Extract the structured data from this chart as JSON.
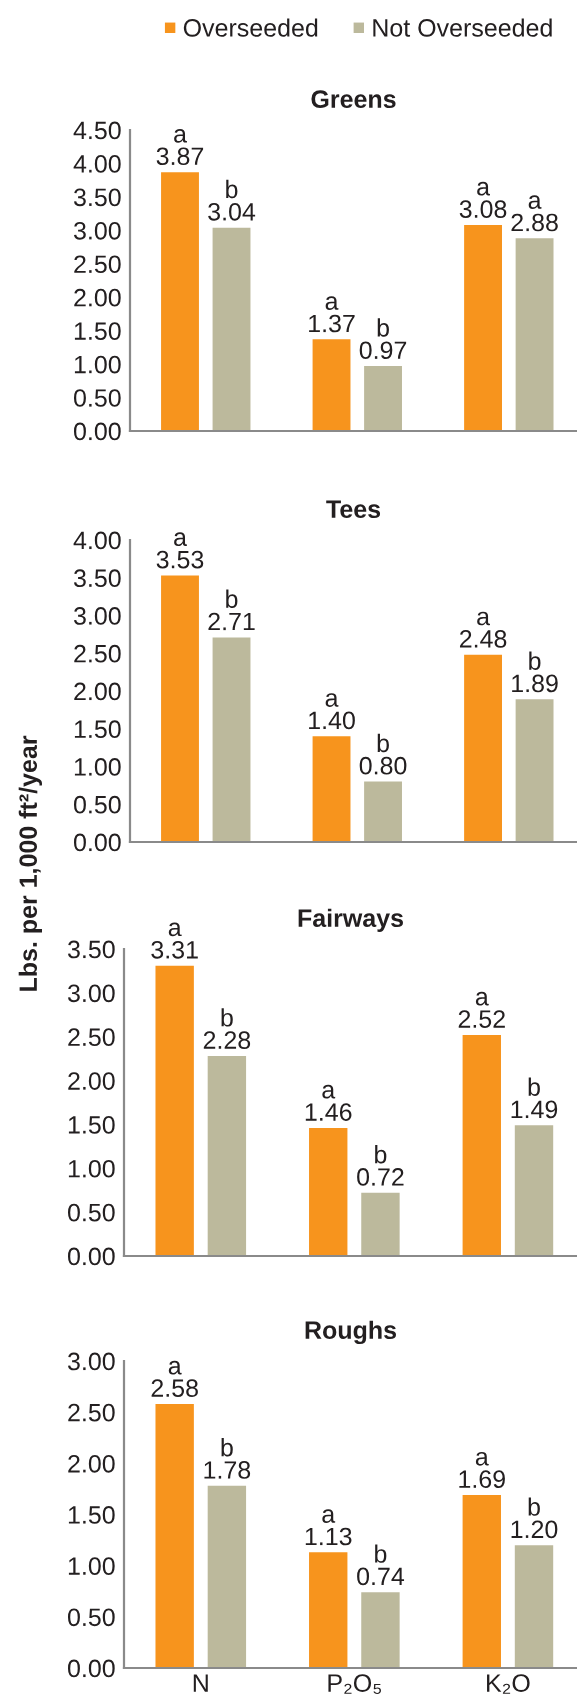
{
  "chart_data": [
    {
      "type": "bar",
      "title": "Greens",
      "categories": [
        null,
        null,
        null
      ],
      "series": [
        {
          "name": "Overseeded",
          "color": "#f7941d",
          "values": [
            3.87,
            1.37,
            3.08
          ],
          "value_labels": [
            "a\n3.87",
            "a\n1.37",
            "a\n3.08"
          ]
        },
        {
          "name": "Not Overseeded",
          "color": "#bcb99c",
          "values": [
            3.04,
            0.97,
            2.88
          ],
          "value_labels": [
            "b\n3.04",
            "b\n0.97",
            "a\n2.88"
          ]
        }
      ],
      "ylim": [
        0,
        4.5
      ],
      "yticks": [
        {
          "value": 0,
          "label": "0.00"
        },
        {
          "value": 0.5,
          "label": "0.50"
        },
        {
          "value": 1,
          "label": "1.00"
        },
        {
          "value": 1.5,
          "label": "1.50"
        },
        {
          "value": 2,
          "label": "2.00"
        },
        {
          "value": 2.5,
          "label": "2.50"
        },
        {
          "value": 3,
          "label": "3.00"
        },
        {
          "value": 3.5,
          "label": "3.50"
        },
        {
          "value": 4,
          "label": "4.00"
        },
        {
          "value": 4.5,
          "label": "4.50"
        }
      ],
      "legend": "top right"
    },
    {
      "type": "bar",
      "title": "Tees",
      "categories": [
        null,
        null,
        null
      ],
      "series": [
        {
          "color": "#f7941d",
          "values": [
            3.53,
            1.4,
            2.48
          ],
          "value_labels": [
            "a\n3.53",
            "a\n1.40",
            "a\n2.48"
          ]
        },
        {
          "color": "#bcb99c",
          "values": [
            2.71,
            0.8,
            1.89
          ],
          "value_labels": [
            "b\n2.71",
            "b\n0.80",
            "b\n1.89"
          ]
        }
      ],
      "ylim": [
        0,
        4.0
      ],
      "yticks": [
        {
          "value": 0,
          "label": "0.00"
        },
        {
          "value": 0.5,
          "label": "0.50"
        },
        {
          "value": 1,
          "label": "1.00"
        },
        {
          "value": 1.5,
          "label": "1.50"
        },
        {
          "value": 2,
          "label": "2.00"
        },
        {
          "value": 2.5,
          "label": "2.50"
        },
        {
          "value": 3,
          "label": "3.00"
        },
        {
          "value": 3.5,
          "label": "3.50"
        },
        {
          "value": 4,
          "label": "4.00"
        }
      ]
    },
    {
      "type": "bar",
      "title": "Fairways",
      "ylabel": "Lbs. per 1,000 ft²/year",
      "categories": [
        null,
        null,
        null
      ],
      "series": [
        {
          "color": "#f7941d",
          "values": [
            3.31,
            1.46,
            2.52
          ],
          "value_labels": [
            "a\n3.31",
            "a\n1.46",
            "a\n2.52"
          ]
        },
        {
          "color": "#bcb99c",
          "values": [
            2.28,
            0.72,
            1.49
          ],
          "value_labels": [
            "b\n2.28",
            "b\n0.72",
            "b\n1.49"
          ]
        }
      ],
      "ylim": [
        0,
        3.5
      ],
      "yticks": [
        {
          "value": 0,
          "label": "0.00"
        },
        {
          "value": 0.5,
          "label": "0.50"
        },
        {
          "value": 1,
          "label": "1.00"
        },
        {
          "value": 1.5,
          "label": "1.50"
        },
        {
          "value": 2,
          "label": "2.00"
        },
        {
          "value": 2.5,
          "label": "2.50"
        },
        {
          "value": 3,
          "label": "3.00"
        },
        {
          "value": 3.5,
          "label": "3.50"
        }
      ]
    },
    {
      "type": "bar",
      "title": "Roughs",
      "categories": [
        "N",
        "P₂O₅",
        "K₂O"
      ],
      "series": [
        {
          "color": "#f7941d",
          "values": [
            2.58,
            1.13,
            1.69
          ],
          "value_labels": [
            "a\n2.58",
            "a\n1.13",
            "a\n1.69"
          ]
        },
        {
          "color": "#bcb99c",
          "values": [
            1.78,
            0.74,
            1.2
          ],
          "value_labels": [
            "b\n1.78",
            "b\n0.74",
            "b\n1.20"
          ]
        }
      ],
      "ylim": [
        0,
        3.0
      ],
      "yticks": [
        {
          "value": 0,
          "label": "0.00"
        },
        {
          "value": 0.5,
          "label": "0.50"
        },
        {
          "value": 1,
          "label": "1.00"
        },
        {
          "value": 1.5,
          "label": "1.50"
        },
        {
          "value": 2,
          "label": "2.00"
        },
        {
          "value": 2.5,
          "label": "2.50"
        },
        {
          "value": 3,
          "label": "3.00"
        }
      ]
    }
  ]
}
